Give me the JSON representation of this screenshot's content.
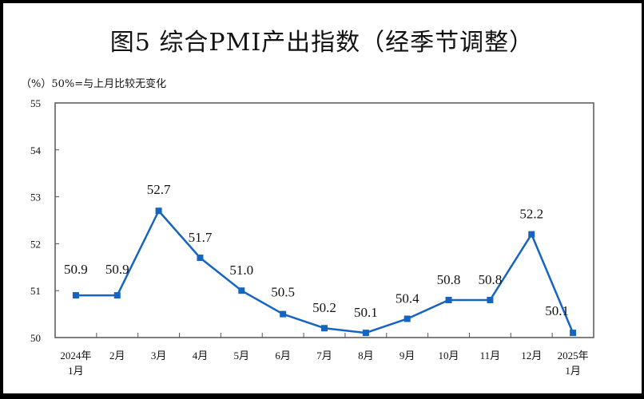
{
  "title": "图5  综合PMI产出指数（经季节调整）",
  "unit_note": "（%）50%=与上月比较无变化",
  "colors": {
    "line": "#1565C0",
    "axis": "#555555",
    "frame": "#000000"
  },
  "chart_data": {
    "type": "line",
    "title": "图5 综合PMI产出指数（经季节调整）",
    "subtitle": "（%）50%=与上月比较无变化",
    "xlabel": "",
    "ylabel": "%",
    "ylim": [
      50,
      55
    ],
    "yticks": [
      50,
      51,
      52,
      53,
      54,
      55
    ],
    "grid": false,
    "legend": null,
    "categories": [
      "2024年1月",
      "2月",
      "3月",
      "4月",
      "5月",
      "6月",
      "7月",
      "8月",
      "9月",
      "10月",
      "11月",
      "12月",
      "2025年1月"
    ],
    "category_lines": [
      [
        "2024年",
        "1月"
      ],
      [
        "2月"
      ],
      [
        "3月"
      ],
      [
        "4月"
      ],
      [
        "5月"
      ],
      [
        "6月"
      ],
      [
        "7月"
      ],
      [
        "8月"
      ],
      [
        "9月"
      ],
      [
        "10月"
      ],
      [
        "11月"
      ],
      [
        "12月"
      ],
      [
        "2025年",
        "1月"
      ]
    ],
    "series": [
      {
        "name": "综合PMI产出指数",
        "values": [
          50.9,
          50.9,
          52.7,
          51.7,
          51.0,
          50.5,
          50.2,
          50.1,
          50.4,
          50.8,
          50.8,
          52.2,
          50.1
        ]
      }
    ],
    "data_labels": [
      "50.9",
      "50.9",
      "52.7",
      "51.7",
      "51.0",
      "50.5",
      "50.2",
      "50.1",
      "50.4",
      "50.8",
      "50.8",
      "52.2",
      "50.1"
    ]
  }
}
